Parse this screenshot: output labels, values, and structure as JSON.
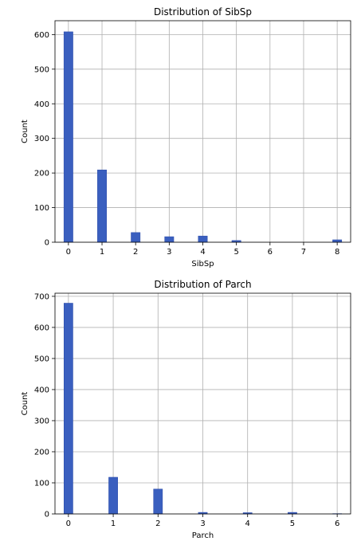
{
  "chart_data": [
    {
      "type": "bar",
      "title": "Distribution of SibSp",
      "xlabel": "SibSp",
      "ylabel": "Count",
      "xlim": [
        -0.4,
        8.4
      ],
      "ylim": [
        0,
        640
      ],
      "xticks": [
        0,
        1,
        2,
        3,
        4,
        5,
        6,
        7,
        8
      ],
      "yticks": [
        0,
        100,
        200,
        300,
        400,
        500,
        600
      ],
      "grid": true,
      "bar_width": 0.27,
      "x": [
        0,
        1,
        2,
        3,
        4,
        5,
        8
      ],
      "values": [
        608,
        209,
        28,
        16,
        18,
        5,
        7
      ]
    },
    {
      "type": "bar",
      "title": "Distribution of Parch",
      "xlabel": "Parch",
      "ylabel": "Count",
      "xlim": [
        -0.3,
        6.3
      ],
      "ylim": [
        0,
        710
      ],
      "xticks": [
        0,
        1,
        2,
        3,
        4,
        5,
        6
      ],
      "yticks": [
        0,
        100,
        200,
        300,
        400,
        500,
        600,
        700
      ],
      "grid": true,
      "bar_width": 0.2,
      "x": [
        0,
        1,
        2,
        3,
        4,
        5,
        6
      ],
      "values": [
        678,
        118,
        80,
        5,
        4,
        5,
        1
      ]
    }
  ]
}
